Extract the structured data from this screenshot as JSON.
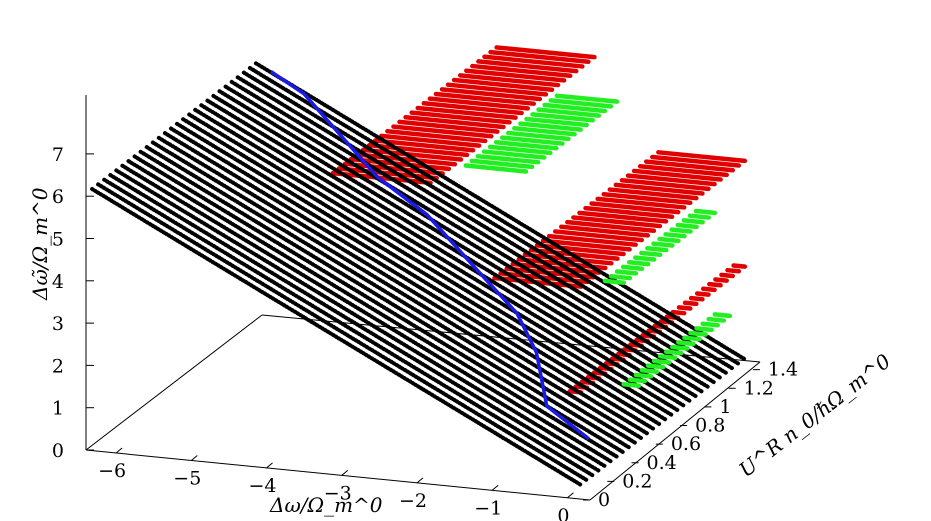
{
  "chart_data": {
    "type": "scatter",
    "projection": "3d",
    "title": "",
    "xlabel": "Δω/Ω_m^0",
    "ylabel": "U^R n_0/ℏΩ_m^0",
    "zlabel": "Δω̃/Ω_m^0",
    "x_ticks": [
      "−6",
      "−5",
      "−4",
      "−3",
      "−2",
      "−1",
      "0"
    ],
    "y_ticks": [
      "0",
      "0.2",
      "0.4",
      "0.6",
      "0.8",
      "1",
      "1.2",
      "1.4"
    ],
    "z_ticks": [
      "0",
      "1",
      "2",
      "3",
      "4",
      "5",
      "6",
      "7"
    ],
    "xlim": [
      -6.4,
      0.3
    ],
    "ylim": [
      0,
      1.45
    ],
    "zlim": [
      0,
      7.2
    ],
    "grid": false,
    "legend": "none",
    "colors": {
      "black": "#000000",
      "red": "#e00000",
      "green": "#22ee22",
      "blue": "#1a1ae6"
    },
    "series": [
      {
        "color": "black",
        "style": "points",
        "y_values": [
          0.05,
          0.1,
          0.15,
          0.2,
          0.25,
          0.3,
          0.35,
          0.4,
          0.45,
          0.5,
          0.55,
          0.6,
          0.65,
          0.7,
          0.75,
          0.8,
          0.85,
          0.9,
          0.95,
          1.0,
          1.05,
          1.1,
          1.15,
          1.2,
          1.25,
          1.3,
          1.35,
          1.4
        ],
        "x_range": [
          -6.4,
          0.1
        ]
      },
      {
        "color": "red",
        "style": "points",
        "y_values": [
          0.05,
          0.1,
          0.15,
          0.2,
          0.25,
          0.3,
          0.35,
          0.4,
          0.45,
          0.5,
          0.55,
          0.6,
          0.65,
          0.7,
          0.75,
          0.8,
          0.85,
          0.9,
          0.95,
          1.0,
          1.05,
          1.1,
          1.15,
          1.2,
          1.25,
          1.3,
          1.35,
          1.4
        ],
        "plateaus": [
          {
            "z": 7.0,
            "x_range": [
              -3.2,
              -1.9
            ]
          },
          {
            "z": 4.9,
            "x_range": [
              -1.05,
              0.1
            ]
          },
          {
            "z": 2.4,
            "x_range": [
              -0.05,
              0.1
            ]
          }
        ]
      },
      {
        "color": "green",
        "style": "points",
        "plateaus": [
          {
            "z": 6.0,
            "x_range": [
              -2.4,
              -1.6
            ]
          },
          {
            "z": 3.6,
            "x_range": [
              -0.55,
              -0.3
            ]
          },
          {
            "z": 1.2,
            "x_range": [
              -0.3,
              -0.1
            ]
          }
        ]
      },
      {
        "color": "blue",
        "style": "line",
        "points": [
          {
            "x": -6.2,
            "y": 1.4,
            "z": 5.9
          },
          {
            "x": -5.6,
            "y": 1.3,
            "z": 5.7
          },
          {
            "x": -4.3,
            "y": 1.1,
            "z": 4.4
          },
          {
            "x": -3.4,
            "y": 0.95,
            "z": 4.0
          },
          {
            "x": -2.5,
            "y": 0.8,
            "z": 3.2
          },
          {
            "x": -1.8,
            "y": 0.7,
            "z": 2.5
          },
          {
            "x": -1.3,
            "y": 0.55,
            "z": 2.0
          },
          {
            "x": -1.0,
            "y": 0.45,
            "z": 1.0
          },
          {
            "x": -0.2,
            "y": 0.3,
            "z": 0.7
          }
        ]
      }
    ]
  }
}
